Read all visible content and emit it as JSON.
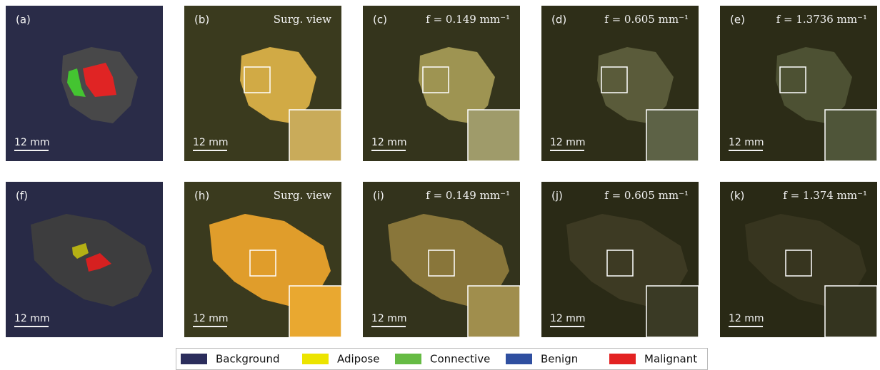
{
  "figure": {
    "panels": [
      {
        "label": "(a)",
        "scale": "12 mm"
      },
      {
        "label": "(b)",
        "caption": "Surg. view",
        "scale": "12 mm"
      },
      {
        "label": "(c)",
        "caption": "f = 0.149 mm⁻¹",
        "scale": "12 mm"
      },
      {
        "label": "(d)",
        "caption": "f = 0.605 mm⁻¹",
        "scale": "12 mm"
      },
      {
        "label": "(e)",
        "caption": "f = 1.3736 mm⁻¹",
        "scale": "12 mm"
      },
      {
        "label": "(f)",
        "scale": "12 mm"
      },
      {
        "label": "(h)",
        "caption": "Surg. view",
        "scale": "12 mm"
      },
      {
        "label": "(i)",
        "caption": "f = 0.149 mm⁻¹",
        "scale": "12 mm"
      },
      {
        "label": "(j)",
        "caption": "f = 0.605 mm⁻¹",
        "scale": "12 mm"
      },
      {
        "label": "(k)",
        "caption": "f = 1.374 mm⁻¹",
        "scale": "12 mm"
      }
    ],
    "legend": [
      {
        "name": "Background",
        "color": "#2b2d5c"
      },
      {
        "name": "Adipose",
        "color": "#ece400"
      },
      {
        "name": "Connective",
        "color": "#66bb44"
      },
      {
        "name": "Benign",
        "color": "#2f4fa0"
      },
      {
        "name": "Malignant",
        "color": "#e32222"
      }
    ]
  }
}
